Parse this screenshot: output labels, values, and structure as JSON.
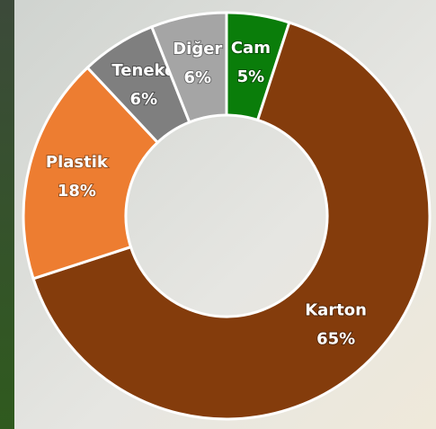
{
  "chart_data": {
    "type": "donut",
    "categories": [
      "Cam",
      "Karton",
      "Plastik",
      "Teneke",
      "Diğer"
    ],
    "values": [
      5,
      65,
      18,
      6,
      6
    ],
    "value_labels": [
      "5%",
      "65%",
      "18%",
      "6%",
      "6%"
    ],
    "colors": [
      "#0a7d0a",
      "#843c0c",
      "#ed7d31",
      "#7f7f7f",
      "#a5a5a5"
    ]
  }
}
